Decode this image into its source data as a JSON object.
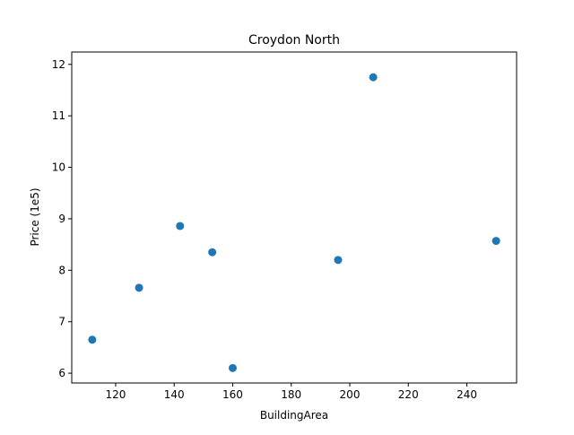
{
  "chart_data": {
    "type": "scatter",
    "title": "Croydon North",
    "xlabel": "BuildingArea",
    "ylabel": "Price (1e5)",
    "xlim": [
      105,
      257
    ],
    "ylim": [
      5.81,
      12.24
    ],
    "xticks": [
      120,
      140,
      160,
      180,
      200,
      220,
      240
    ],
    "yticks": [
      6,
      7,
      8,
      9,
      10,
      11,
      12
    ],
    "grid": false,
    "marker_color": "#1f77b4",
    "points": [
      {
        "x": 112,
        "y": 6.65
      },
      {
        "x": 128,
        "y": 7.66
      },
      {
        "x": 142,
        "y": 8.86
      },
      {
        "x": 153,
        "y": 8.35
      },
      {
        "x": 160,
        "y": 6.1
      },
      {
        "x": 196,
        "y": 8.2
      },
      {
        "x": 208,
        "y": 11.75
      },
      {
        "x": 250,
        "y": 8.57
      }
    ]
  }
}
